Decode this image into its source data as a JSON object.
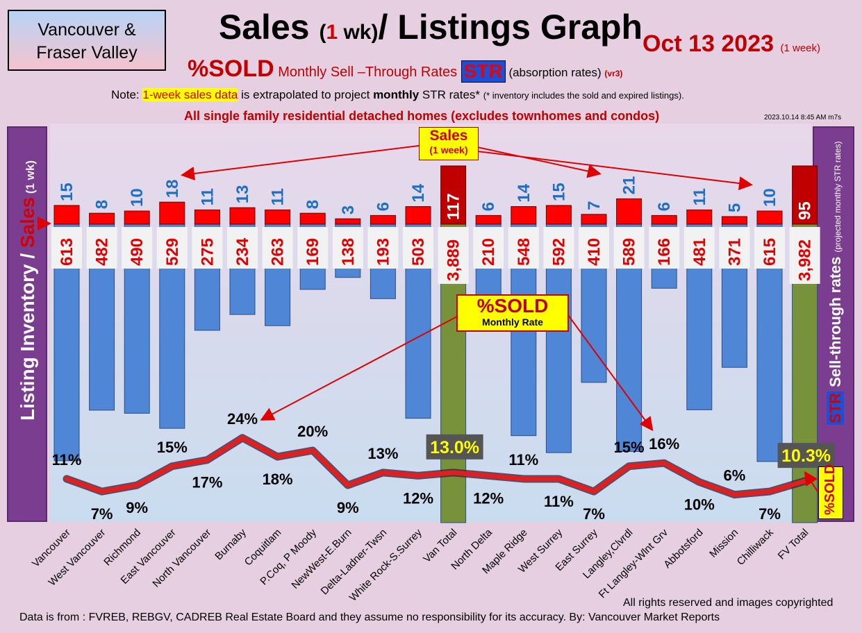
{
  "header": {
    "region_line1": "Vancouver &",
    "region_line2": "Fraser Valley",
    "title_a": "Sales ",
    "title_b": "(",
    "title_c": "1",
    "title_d": " wk)",
    "title_e": "/ Listings Graph",
    "date": "Oct 13  2023",
    "date_note": "(1 week)",
    "sub_big": "%SOLD",
    "sub_mid": " Monthly Sell –Through Rates ",
    "sub_str": "STR",
    "sub_abs": " (absorption rates) ",
    "sub_ver": "(vr3)",
    "note_pre": "Note: ",
    "note_hl": "1-week sales data",
    "note_mid": " is extrapolated to project ",
    "note_bold": "monthly",
    "note_post": " STR rates* ",
    "note_small": "(* inventory includes the sold and expired listings).",
    "scope": "All single family residential detached homes (excludes townhomes and condos)",
    "stamp": "2023.10.14 8:45 AM m7s"
  },
  "left_axis": {
    "main": "Listing Inventory ",
    "slash": "/ ",
    "sales": "Sales",
    "unit": " (1 wk)"
  },
  "right_axis": {
    "main": "Sell-through rates ",
    "unit": "(projected monthly STR rates)",
    "str": "STR",
    "sold": "%SOLD"
  },
  "callouts": {
    "sales_l1": "Sales",
    "sales_l2": "(1 week)",
    "sold_l1": "%SOLD",
    "sold_l2": "Monthly Rate"
  },
  "footer": {
    "copyright": "All rights reserved and  images copyrighted",
    "source": "Data is from : FVREB, REBGV, CADREB Real Estate Board and they assume no responsibility for its accuracy. By: Vancouver Market Reports"
  },
  "colors": {
    "inventory": "#4f86d6",
    "inventory_total": "#77923a",
    "sales": "#ff0000",
    "sales_total": "#c00000",
    "str_line": "#e02020"
  },
  "chart_data": {
    "type": "bar",
    "categories": [
      "Vancouver",
      "West Vancouver",
      "Richmond",
      "East Vancouver",
      "North Vancouver",
      "Burnaby",
      "Coquitlam",
      "P.Coq, P Moody",
      "NewWest-E.Burn",
      "Delta-Ladner-Twsn",
      "White Rock-S.Surrey",
      "Van Total",
      "North Delta",
      "Maple Ridge",
      "West Surrey",
      "East Surrey",
      "Langley,Clvrdl",
      "Ft Langley-Wlnt Grv",
      "Abbotsford",
      "Mission",
      "Chilliwack",
      "FV Total"
    ],
    "series": [
      {
        "name": "Sales",
        "values": [
          15,
          8,
          10,
          18,
          11,
          13,
          11,
          8,
          3,
          6,
          14,
          117,
          6,
          14,
          15,
          7,
          21,
          6,
          11,
          5,
          10,
          95
        ],
        "labels": [
          "15",
          "8",
          "10",
          "18",
          "11",
          "13",
          "11",
          "8",
          "3",
          "6",
          "14",
          "117",
          "6",
          "14",
          "15",
          "7",
          "21",
          "6",
          "11",
          "5",
          "10",
          "95"
        ]
      },
      {
        "name": "Listing Inventory",
        "values": [
          613,
          482,
          490,
          529,
          275,
          234,
          263,
          169,
          138,
          193,
          503,
          3889,
          210,
          548,
          592,
          410,
          589,
          166,
          481,
          371,
          615,
          3982
        ],
        "labels": [
          "613",
          "482",
          "490",
          "529",
          "275",
          "234",
          "263",
          "169",
          "138",
          "193",
          "503",
          "3,889",
          "210",
          "548",
          "592",
          "410",
          "589",
          "166",
          "481",
          "371",
          "615",
          "3,982"
        ]
      },
      {
        "name": "Sell-through rates",
        "values": [
          11,
          7,
          9,
          15,
          17,
          24,
          18,
          20,
          9,
          13,
          12,
          13.0,
          12,
          11,
          11,
          7,
          15,
          16,
          10,
          6,
          7,
          10.3
        ],
        "labels": [
          "11%",
          "7%",
          "9%",
          "15%",
          "17%",
          "24%",
          "18%",
          "20%",
          "9%",
          "13%",
          "12%",
          "13.0%",
          "12%",
          "11%",
          "11%",
          "7%",
          "15%",
          "16%",
          "10%",
          "6%",
          "7%",
          "10.3%"
        ]
      }
    ],
    "totals": [
      "Van Total",
      "FV Total"
    ]
  }
}
